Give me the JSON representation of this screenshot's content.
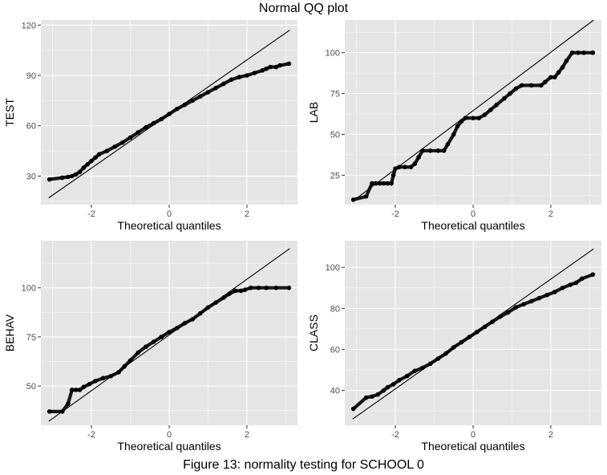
{
  "title": "Normal QQ plot",
  "caption": "Figure 13: normality testing for SCHOOL 0",
  "colors": {
    "panel_background": "#e5e5e5",
    "grid": "#ffffff",
    "points": "#000000",
    "line": "#000000",
    "tick_text": "#4d4d4d"
  },
  "chart_data": [
    {
      "type": "scatter",
      "name": "test-panel",
      "xlabel": "Theoretical quantiles",
      "ylabel": "TEST",
      "xlim": [
        -3.3,
        3.3
      ],
      "ylim": [
        13,
        123
      ],
      "xticks": [
        -2,
        0,
        2
      ],
      "yticks": [
        30,
        60,
        90,
        120
      ],
      "reference_line": [
        [
          -3.1,
          17
        ],
        [
          3.1,
          117
        ]
      ],
      "points": [
        [
          -3.08,
          28
        ],
        [
          -2.75,
          29
        ],
        [
          -2.6,
          29.5
        ],
        [
          -2.5,
          30
        ],
        [
          -2.4,
          31
        ],
        [
          -2.3,
          32.5
        ],
        [
          -2.2,
          35
        ],
        [
          -2.1,
          37
        ],
        [
          -2.0,
          39
        ],
        [
          -1.9,
          41
        ],
        [
          -1.8,
          43
        ],
        [
          -1.6,
          45
        ],
        [
          -1.4,
          47.5
        ],
        [
          -1.2,
          50
        ],
        [
          -1.0,
          53
        ],
        [
          -0.8,
          56
        ],
        [
          -0.6,
          59
        ],
        [
          -0.4,
          61.5
        ],
        [
          -0.2,
          64
        ],
        [
          0.0,
          67
        ],
        [
          0.2,
          70
        ],
        [
          0.4,
          72.5
        ],
        [
          0.6,
          75
        ],
        [
          0.8,
          77.5
        ],
        [
          1.0,
          80
        ],
        [
          1.2,
          82.5
        ],
        [
          1.4,
          85
        ],
        [
          1.6,
          87.5
        ],
        [
          1.8,
          89
        ],
        [
          2.0,
          90
        ],
        [
          2.2,
          91.5
        ],
        [
          2.4,
          93
        ],
        [
          2.5,
          94
        ],
        [
          2.6,
          95
        ],
        [
          2.75,
          95
        ],
        [
          2.85,
          96
        ],
        [
          3.08,
          97
        ]
      ]
    },
    {
      "type": "scatter",
      "name": "lab-panel",
      "xlabel": "Theoretical quantiles",
      "ylabel": "LAB",
      "xlim": [
        -3.3,
        3.3
      ],
      "ylim": [
        7,
        120
      ],
      "xticks": [
        -2,
        0,
        2
      ],
      "yticks": [
        25,
        50,
        75,
        100
      ],
      "reference_line": [
        [
          -3.1,
          9
        ],
        [
          3.1,
          120
        ]
      ],
      "points": [
        [
          -3.08,
          10
        ],
        [
          -2.75,
          12
        ],
        [
          -2.6,
          20
        ],
        [
          -2.5,
          20
        ],
        [
          -2.4,
          20
        ],
        [
          -2.3,
          20
        ],
        [
          -2.2,
          20
        ],
        [
          -2.1,
          20
        ],
        [
          -2.05,
          25
        ],
        [
          -2.0,
          29
        ],
        [
          -1.9,
          30
        ],
        [
          -1.75,
          30
        ],
        [
          -1.6,
          30
        ],
        [
          -1.5,
          32
        ],
        [
          -1.4,
          36
        ],
        [
          -1.3,
          40
        ],
        [
          -1.1,
          40
        ],
        [
          -0.9,
          40
        ],
        [
          -0.75,
          40
        ],
        [
          -0.65,
          44
        ],
        [
          -0.5,
          50
        ],
        [
          -0.4,
          55
        ],
        [
          -0.3,
          58
        ],
        [
          -0.2,
          60
        ],
        [
          0.0,
          60
        ],
        [
          0.15,
          60
        ],
        [
          0.3,
          62
        ],
        [
          0.45,
          65
        ],
        [
          0.6,
          68
        ],
        [
          0.8,
          72
        ],
        [
          0.95,
          75
        ],
        [
          1.1,
          78
        ],
        [
          1.25,
          80
        ],
        [
          1.5,
          80
        ],
        [
          1.75,
          80
        ],
        [
          1.85,
          82
        ],
        [
          2.0,
          85
        ],
        [
          2.1,
          85
        ],
        [
          2.2,
          88
        ],
        [
          2.3,
          91
        ],
        [
          2.4,
          95
        ],
        [
          2.55,
          100
        ],
        [
          2.7,
          100
        ],
        [
          2.85,
          100
        ],
        [
          3.08,
          100
        ]
      ]
    },
    {
      "type": "scatter",
      "name": "behav-panel",
      "xlabel": "Theoretical quantiles",
      "ylabel": "BEHAV",
      "xlim": [
        -3.3,
        3.3
      ],
      "ylim": [
        30,
        124
      ],
      "xticks": [
        -2,
        0,
        2
      ],
      "yticks": [
        50,
        75,
        100
      ],
      "reference_line": [
        [
          -3.1,
          32
        ],
        [
          3.1,
          120
        ]
      ],
      "points": [
        [
          -3.08,
          37
        ],
        [
          -2.75,
          37
        ],
        [
          -2.6,
          41
        ],
        [
          -2.5,
          48
        ],
        [
          -2.4,
          48
        ],
        [
          -2.3,
          48
        ],
        [
          -2.2,
          49.5
        ],
        [
          -2.05,
          51
        ],
        [
          -1.9,
          52.5
        ],
        [
          -1.7,
          54
        ],
        [
          -1.5,
          55
        ],
        [
          -1.3,
          57
        ],
        [
          -1.15,
          60
        ],
        [
          -1.0,
          63
        ],
        [
          -0.8,
          67
        ],
        [
          -0.6,
          70
        ],
        [
          -0.4,
          72.5
        ],
        [
          -0.2,
          75
        ],
        [
          0.0,
          77.5
        ],
        [
          0.2,
          79.5
        ],
        [
          0.4,
          82
        ],
        [
          0.6,
          84
        ],
        [
          0.8,
          87
        ],
        [
          1.0,
          90
        ],
        [
          1.2,
          92.5
        ],
        [
          1.4,
          95
        ],
        [
          1.55,
          97
        ],
        [
          1.7,
          98.5
        ],
        [
          1.85,
          98.5
        ],
        [
          1.95,
          99
        ],
        [
          2.1,
          100
        ],
        [
          2.3,
          100
        ],
        [
          2.5,
          100
        ],
        [
          2.75,
          100
        ],
        [
          3.08,
          100
        ]
      ]
    },
    {
      "type": "scatter",
      "name": "class-panel",
      "xlabel": "Theoretical quantiles",
      "ylabel": "CLASS",
      "xlim": [
        -3.3,
        3.3
      ],
      "ylim": [
        23,
        113
      ],
      "xticks": [
        -2,
        0,
        2
      ],
      "yticks": [
        40,
        60,
        80,
        100
      ],
      "reference_line": [
        [
          -3.1,
          26
        ],
        [
          3.1,
          109
        ]
      ],
      "points": [
        [
          -3.08,
          31
        ],
        [
          -2.75,
          36.5
        ],
        [
          -2.6,
          37
        ],
        [
          -2.45,
          38
        ],
        [
          -2.3,
          40
        ],
        [
          -2.2,
          41.5
        ],
        [
          -2.05,
          43
        ],
        [
          -1.9,
          45
        ],
        [
          -1.7,
          47
        ],
        [
          -1.5,
          49.5
        ],
        [
          -1.3,
          51
        ],
        [
          -1.1,
          53
        ],
        [
          -0.9,
          55.5
        ],
        [
          -0.7,
          58
        ],
        [
          -0.5,
          61
        ],
        [
          -0.3,
          63.5
        ],
        [
          -0.1,
          66
        ],
        [
          0.1,
          68.5
        ],
        [
          0.3,
          71
        ],
        [
          0.5,
          73.5
        ],
        [
          0.7,
          76
        ],
        [
          0.9,
          78
        ],
        [
          1.1,
          80.5
        ],
        [
          1.3,
          82
        ],
        [
          1.5,
          83.5
        ],
        [
          1.7,
          85
        ],
        [
          1.9,
          86.5
        ],
        [
          2.1,
          88
        ],
        [
          2.3,
          90
        ],
        [
          2.5,
          91.5
        ],
        [
          2.65,
          92.5
        ],
        [
          2.8,
          94.5
        ],
        [
          3.08,
          96.5
        ]
      ]
    }
  ]
}
